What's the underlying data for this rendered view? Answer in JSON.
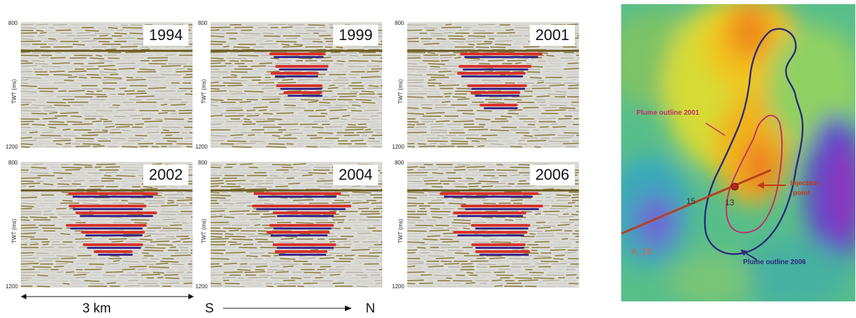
{
  "axis": {
    "y_top": "800",
    "y_bottom": "1200",
    "y_label": "TWT (ms)"
  },
  "panels": [
    {
      "year": "1994",
      "amplitude": 0.0
    },
    {
      "year": "1999",
      "amplitude": 0.45
    },
    {
      "year": "2001",
      "amplitude": 0.7
    },
    {
      "year": "2002",
      "amplitude": 0.85
    },
    {
      "year": "2004",
      "amplitude": 0.95
    },
    {
      "year": "2006",
      "amplitude": 1.0
    }
  ],
  "scale_bar": {
    "label": "3 km"
  },
  "direction": {
    "south": "S",
    "north": "N"
  },
  "map": {
    "plume_2001_label": "Plume outline 2001",
    "plume_2006_label": "Plume outline 2006",
    "injection_label_line1": "Injection",
    "injection_label_line2": "point",
    "well_label_a": "15",
    "well_label_b": "13",
    "line_label": "A_18",
    "colors": {
      "plume_2001": "#c0306a",
      "plume_2006": "#2a2a7a",
      "injection": "#c0391b"
    }
  }
}
